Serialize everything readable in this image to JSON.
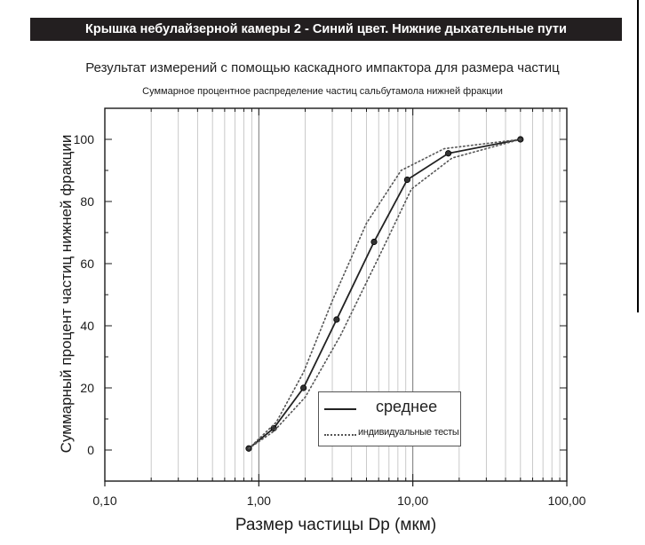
{
  "header": {
    "title": "Крышка небулайзерной камеры 2 - Синий цвет. Нижние дыхательные пути"
  },
  "subtitle": "Результат измерений с помощью каскадного импактора для размера частиц",
  "chart_data": {
    "type": "line",
    "title": "Суммарное процентное распределение частиц сальбутамола нижней фракции",
    "xlabel": "Размер частицы Dp (мкм)",
    "ylabel": "Суммарный процент частиц нижней фракции",
    "xscale": "log",
    "xlim": [
      0.1,
      100
    ],
    "ylim": [
      -10,
      110
    ],
    "xticks": [
      0.1,
      1,
      10,
      100
    ],
    "xtick_labels": [
      "0,10",
      "1,00",
      "10,00",
      "100,00"
    ],
    "yticks": [
      0,
      20,
      40,
      60,
      80,
      100
    ],
    "ytick_labels": [
      "0",
      "20",
      "40",
      "60",
      "80",
      "100"
    ],
    "grid": "vertical",
    "legend_position": "bottom-right",
    "series": [
      {
        "name": "среднее",
        "style": "solid",
        "markers": true,
        "color": "#222222",
        "x": [
          0.86,
          1.25,
          1.95,
          3.2,
          5.6,
          9.2,
          17,
          50
        ],
        "y": [
          0.5,
          7,
          20,
          42,
          67,
          87,
          95.5,
          100
        ]
      },
      {
        "name": "индивидуальные тесты",
        "style": "dotted",
        "markers": false,
        "color": "#555555",
        "x": [
          0.86,
          1.3,
          1.95,
          3.0,
          5.0,
          8.4,
          16,
          50
        ],
        "y": [
          0.5,
          9,
          25,
          48,
          73,
          90,
          97,
          100
        ]
      },
      {
        "name": "",
        "style": "dotted",
        "markers": false,
        "color": "#555555",
        "x": [
          0.86,
          1.25,
          2.0,
          3.4,
          6.0,
          9.8,
          18,
          50
        ],
        "y": [
          0.5,
          6,
          17,
          37,
          62,
          84,
          94,
          100
        ]
      }
    ]
  }
}
